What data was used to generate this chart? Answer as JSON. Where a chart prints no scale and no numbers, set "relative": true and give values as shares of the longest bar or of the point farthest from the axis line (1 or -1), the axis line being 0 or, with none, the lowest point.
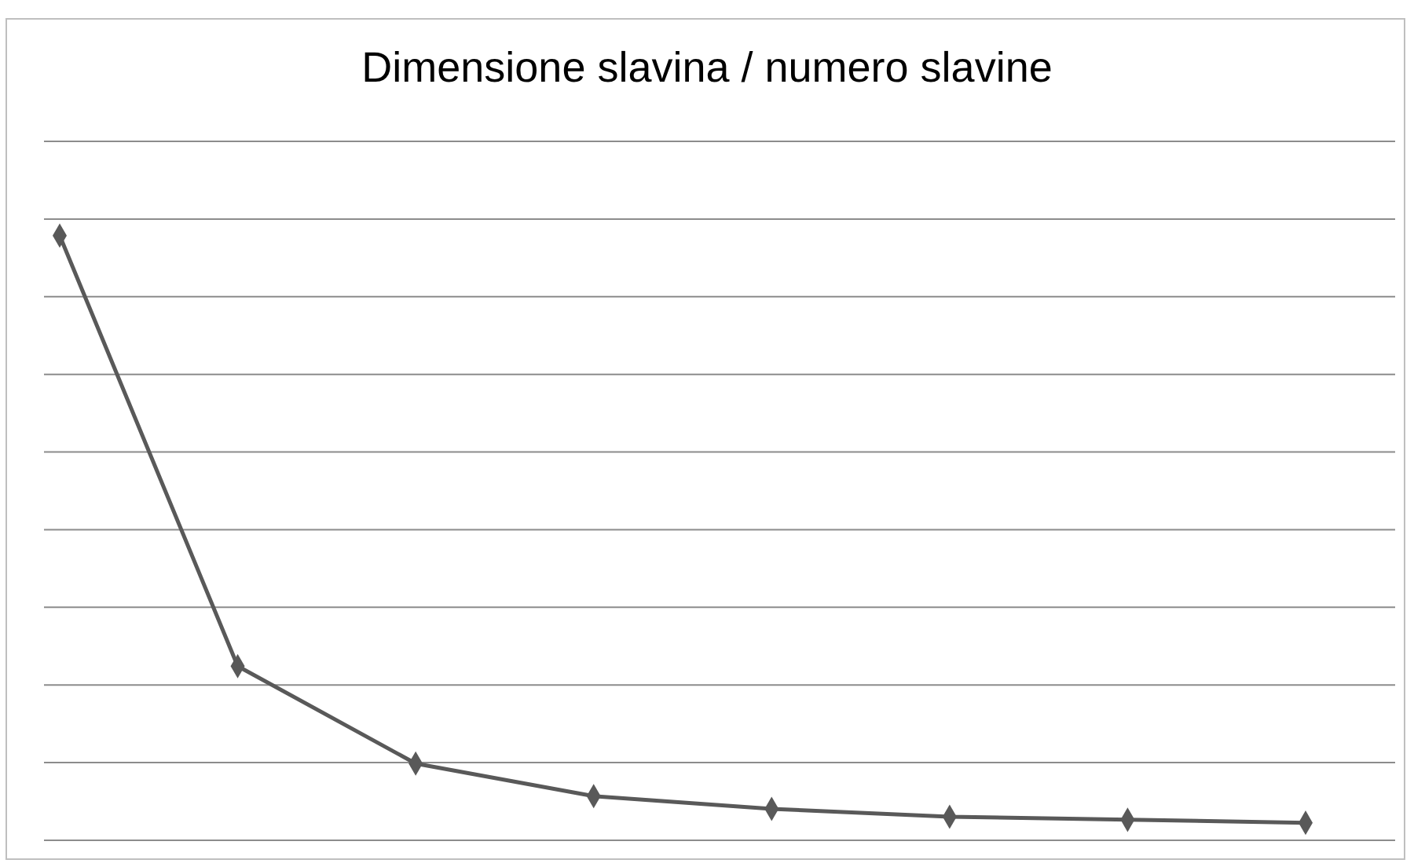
{
  "chart_data": {
    "type": "line",
    "title": "Dimensione slavina / numero slavine",
    "relative": true,
    "categories": [
      null,
      null,
      null,
      null,
      null,
      null,
      null,
      null
    ],
    "series": [
      {
        "color": "#595959",
        "values": [
          1,
          0.288,
          0.127,
          0.073,
          0.052,
          0.039,
          0.034,
          0.029
        ]
      }
    ],
    "grid": true,
    "marker": "diamond",
    "line_style": "solid"
  }
}
